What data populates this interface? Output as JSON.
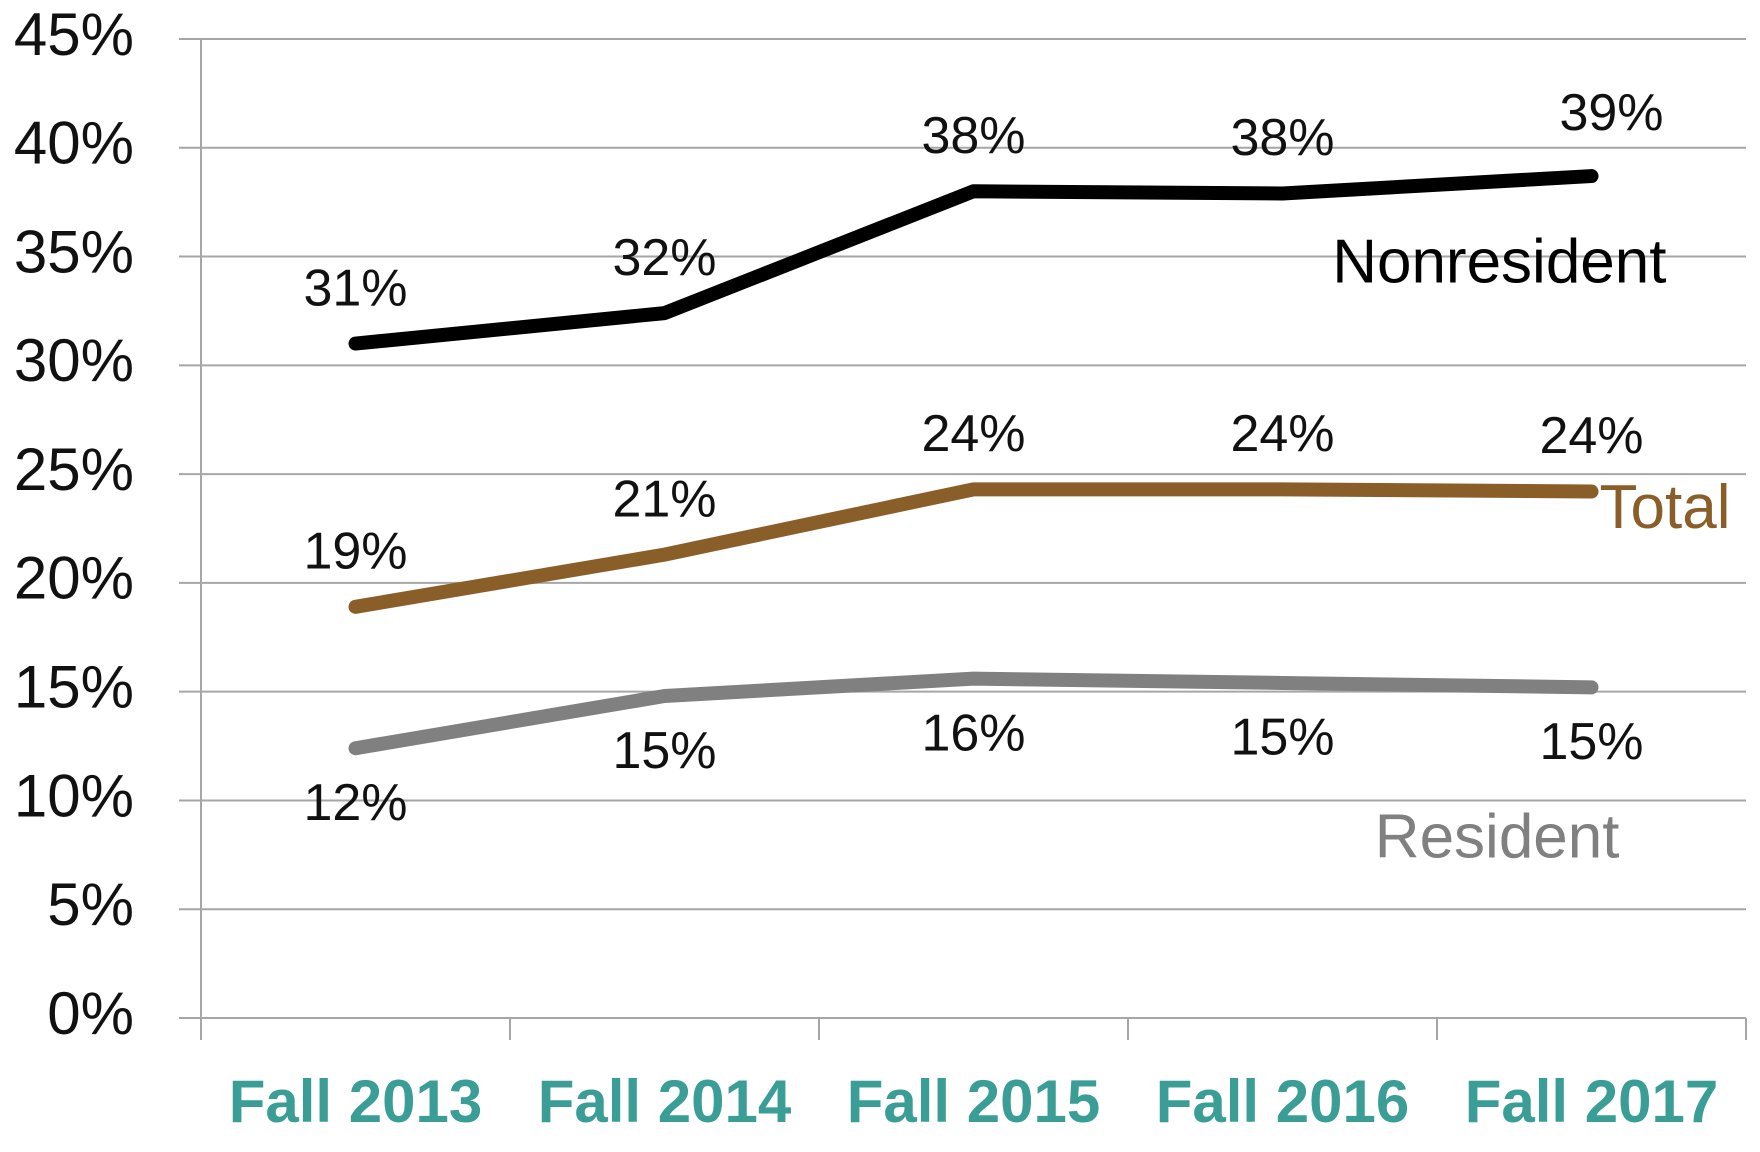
{
  "chart_data": {
    "type": "line",
    "categories": [
      "Fall 2013",
      "Fall 2014",
      "Fall 2015",
      "Fall 2016",
      "Fall 2017"
    ],
    "series": [
      {
        "name": "Nonresident",
        "color": "#000000",
        "values": [
          31.0,
          32.4,
          38.0,
          37.9,
          38.7
        ],
        "value_labels": [
          "31%",
          "32%",
          "38%",
          "38%",
          "39%"
        ]
      },
      {
        "name": "Total",
        "color": "#8a5e28",
        "values": [
          18.9,
          21.3,
          24.3,
          24.3,
          24.2
        ],
        "value_labels": [
          "19%",
          "21%",
          "24%",
          "24%",
          "24%"
        ]
      },
      {
        "name": "Resident",
        "color": "#808080",
        "values": [
          12.4,
          14.8,
          15.6,
          15.4,
          15.2
        ],
        "value_labels": [
          "12%",
          "15%",
          "16%",
          "15%",
          "15%"
        ]
      }
    ],
    "ylim": [
      0,
      45
    ],
    "yticks": [
      {
        "value": 0,
        "label": "0%"
      },
      {
        "value": 5,
        "label": "5%"
      },
      {
        "value": 10,
        "label": "10%"
      },
      {
        "value": 15,
        "label": "15%"
      },
      {
        "value": 20,
        "label": "20%"
      },
      {
        "value": 25,
        "label": "25%"
      },
      {
        "value": 30,
        "label": "30%"
      },
      {
        "value": 35,
        "label": "35%"
      },
      {
        "value": 40,
        "label": "40%"
      },
      {
        "value": 45,
        "label": "45%"
      }
    ],
    "grid": true
  }
}
